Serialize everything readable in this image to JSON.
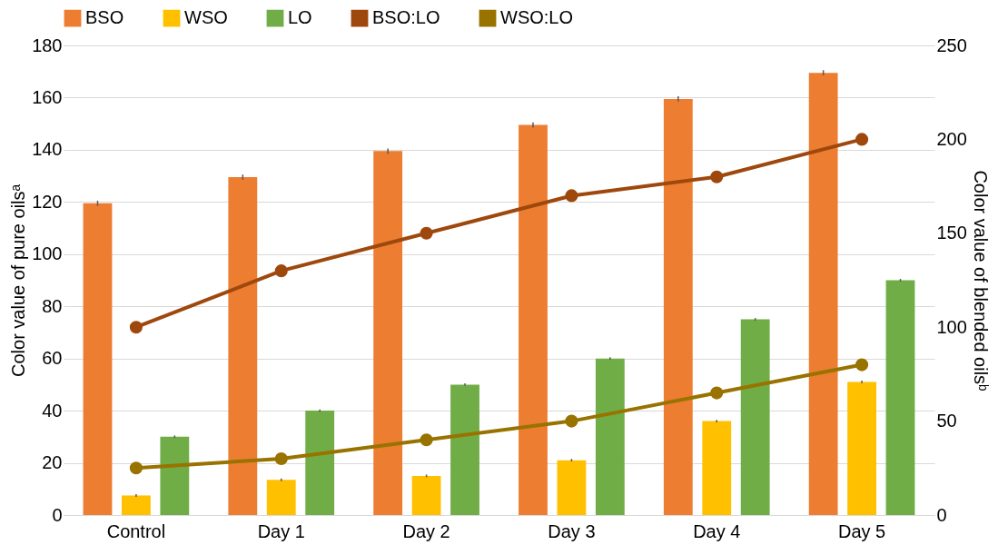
{
  "chart_data": {
    "type": "bar",
    "categories": [
      "Control",
      "Day 1",
      "Day 2",
      "Day 3",
      "Day 4",
      "Day 5"
    ],
    "ylabel": "Color value of pure oilsᵃ",
    "y2label": "Color value of blended oilsᵇ",
    "ylim": [
      0,
      180
    ],
    "yticks": [
      0,
      20,
      40,
      60,
      80,
      100,
      120,
      140,
      160,
      180
    ],
    "y2lim": [
      0,
      250
    ],
    "y2ticks": [
      0,
      50,
      100,
      150,
      200,
      250
    ],
    "grid": "y",
    "legend": "top",
    "series": [
      {
        "name": "BSO",
        "color": "#ed7d31",
        "values": [
          119.5,
          129.5,
          139.5,
          149.5,
          159.5,
          169.5
        ],
        "errors": [
          1,
          1,
          1,
          1,
          1,
          1
        ]
      },
      {
        "name": "WSO",
        "color": "#ffc000",
        "values": [
          7.5,
          13.5,
          15,
          21,
          36,
          51
        ],
        "errors": [
          0.5,
          0.5,
          0.5,
          0.5,
          0.5,
          0.5
        ]
      },
      {
        "name": "LO",
        "color": "#70ad47",
        "values": [
          30,
          40,
          50,
          60,
          75,
          90
        ],
        "errors": [
          0.5,
          0.5,
          0.5,
          0.5,
          0.5,
          0.5
        ]
      },
      {
        "name": "BSO:LO",
        "type": "line",
        "axis": "y2",
        "marker": "circle",
        "color": "#9e480e",
        "values": [
          100,
          130,
          150,
          170,
          180,
          200
        ]
      },
      {
        "name": "WSO:LO",
        "type": "line",
        "axis": "y2",
        "marker": "circle",
        "color": "#997300",
        "values": [
          25,
          30,
          40,
          50,
          65,
          80
        ]
      }
    ]
  }
}
